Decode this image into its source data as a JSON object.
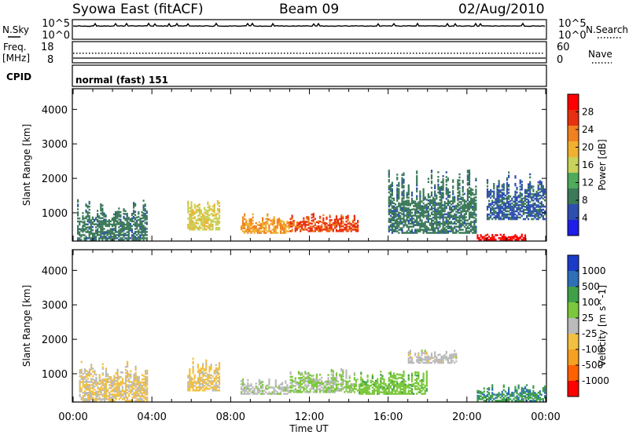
{
  "header": {
    "station": "Syowa East (fitACF)",
    "beam": "Beam 09",
    "date": "02/Aug/2010"
  },
  "status_panel": {
    "nsky_label": "N.Sky",
    "nsearch_label": "N.Search",
    "log_ticks": [
      "10^5",
      "10^0"
    ],
    "freq_label": "Freq.",
    "freq_unit": "[MHz]",
    "freq_ticks": [
      "18",
      "8"
    ],
    "nave_label": "Nave",
    "nave_ticks": [
      "60",
      "0"
    ],
    "cpid_label": "CPID",
    "cpid_value": "normal (fast) 151"
  },
  "x_axis": {
    "label": "Time UT",
    "ticks": [
      "00:00",
      "04:00",
      "08:00",
      "12:00",
      "16:00",
      "20:00",
      "00:00"
    ]
  },
  "colors": {
    "power_scale": [
      "#1e1ee8",
      "#2e4fb0",
      "#3c7a5a",
      "#4faa5a",
      "#c9d25a",
      "#f0b030",
      "#f08020",
      "#e83010",
      "#ff0000"
    ],
    "velocity_scale": [
      "#ff0000",
      "#ff6000",
      "#f5a020",
      "#f2c040",
      "#bbbbbb",
      "#7cc83c",
      "#3fa048",
      "#2e6fb8",
      "#1a3cc8"
    ]
  },
  "chart_data": [
    {
      "type": "heatmap",
      "panel": "power",
      "ylabel": "Slant Range [km]",
      "xlim": [
        "00:00",
        "24:00"
      ],
      "ylim": [
        180,
        4600
      ],
      "yticks": [
        1000,
        2000,
        3000,
        4000
      ],
      "colorbar": {
        "label": "Power [dB]",
        "ticks": [
          "28",
          "24",
          "20",
          "16",
          "12",
          "8",
          "4"
        ],
        "range": [
          0,
          30
        ]
      },
      "regions": [
        {
          "t_start": 0.2,
          "t_end": 3.8,
          "r_min": 200,
          "r_max": 1400,
          "value": 8
        },
        {
          "t_start": 5.8,
          "t_end": 7.5,
          "r_min": 500,
          "r_max": 1400,
          "value": 16
        },
        {
          "t_start": 8.5,
          "t_end": 11.0,
          "r_min": 400,
          "r_max": 1000,
          "value": 20
        },
        {
          "t_start": 11.0,
          "t_end": 14.5,
          "r_min": 450,
          "r_max": 1000,
          "value": 24
        },
        {
          "t_start": 16.0,
          "t_end": 20.5,
          "r_min": 400,
          "r_max": 2300,
          "value": 8
        },
        {
          "t_start": 20.5,
          "t_end": 23.0,
          "r_min": 200,
          "r_max": 400,
          "value": 28
        },
        {
          "t_start": 21.0,
          "t_end": 24.0,
          "r_min": 800,
          "r_max": 2200,
          "value": 6
        }
      ]
    },
    {
      "type": "heatmap",
      "panel": "velocity",
      "ylabel": "Slant Range [km]",
      "xlim": [
        "00:00",
        "24:00"
      ],
      "ylim": [
        180,
        4600
      ],
      "yticks": [
        1000,
        2000,
        3000,
        4000
      ],
      "colorbar": {
        "label": "Velocity [m s^-1]",
        "ticks": [
          "1000",
          "500",
          "100",
          "25",
          "-25",
          "-100",
          "-500",
          "-1000"
        ],
        "range": [
          -1200,
          1200
        ]
      },
      "regions": [
        {
          "t_start": 0.3,
          "t_end": 3.8,
          "r_min": 200,
          "r_max": 1400,
          "value": -150
        },
        {
          "t_start": 5.8,
          "t_end": 7.5,
          "r_min": 500,
          "r_max": 1500,
          "value": -200
        },
        {
          "t_start": 8.5,
          "t_end": 11.0,
          "r_min": 400,
          "r_max": 900,
          "value": 60
        },
        {
          "t_start": 11.0,
          "t_end": 14.5,
          "r_min": 450,
          "r_max": 1200,
          "value": 150
        },
        {
          "t_start": 14.5,
          "t_end": 18.0,
          "r_min": 400,
          "r_max": 1100,
          "value": 300
        },
        {
          "t_start": 17.0,
          "t_end": 19.5,
          "r_min": 1300,
          "r_max": 1700,
          "value": 0
        },
        {
          "t_start": 20.5,
          "t_end": 24.0,
          "r_min": 200,
          "r_max": 700,
          "value": 600
        }
      ]
    }
  ]
}
